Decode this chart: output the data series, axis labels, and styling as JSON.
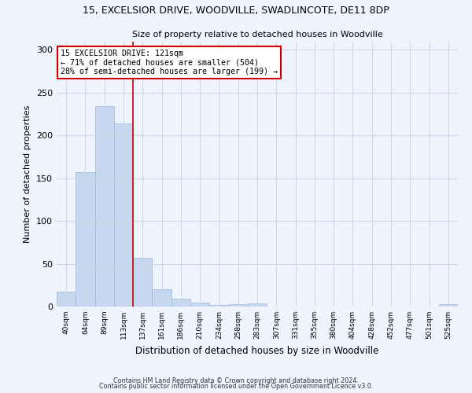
{
  "title1": "15, EXCELSIOR DRIVE, WOODVILLE, SWADLINCOTE, DE11 8DP",
  "title2": "Size of property relative to detached houses in Woodville",
  "xlabel": "Distribution of detached houses by size in Woodville",
  "ylabel": "Number of detached properties",
  "bar_color": "#c5d8f0",
  "bar_edge_color": "#a0b8d8",
  "categories": [
    "40sqm",
    "64sqm",
    "89sqm",
    "113sqm",
    "137sqm",
    "161sqm",
    "186sqm",
    "210sqm",
    "234sqm",
    "258sqm",
    "283sqm",
    "307sqm",
    "331sqm",
    "355sqm",
    "380sqm",
    "404sqm",
    "428sqm",
    "452sqm",
    "477sqm",
    "501sqm",
    "525sqm"
  ],
  "values": [
    17,
    157,
    234,
    214,
    57,
    20,
    9,
    5,
    2,
    3,
    4,
    0,
    0,
    0,
    0,
    0,
    0,
    0,
    0,
    0,
    3
  ],
  "vline_x": 3.5,
  "vline_color": "#cc0000",
  "annotation_text": "15 EXCELSIOR DRIVE: 121sqm\n← 71% of detached houses are smaller (504)\n28% of semi-detached houses are larger (199) →",
  "annotation_box_color": "white",
  "annotation_box_edge": "#cc0000",
  "ylim": [
    0,
    310
  ],
  "yticks": [
    0,
    50,
    100,
    150,
    200,
    250,
    300
  ],
  "footer1": "Contains HM Land Registry data © Crown copyright and database right 2024.",
  "footer2": "Contains public sector information licensed under the Open Government Licence v3.0.",
  "bg_color": "#f0f4ff",
  "grid_color": "#d0d8e8"
}
